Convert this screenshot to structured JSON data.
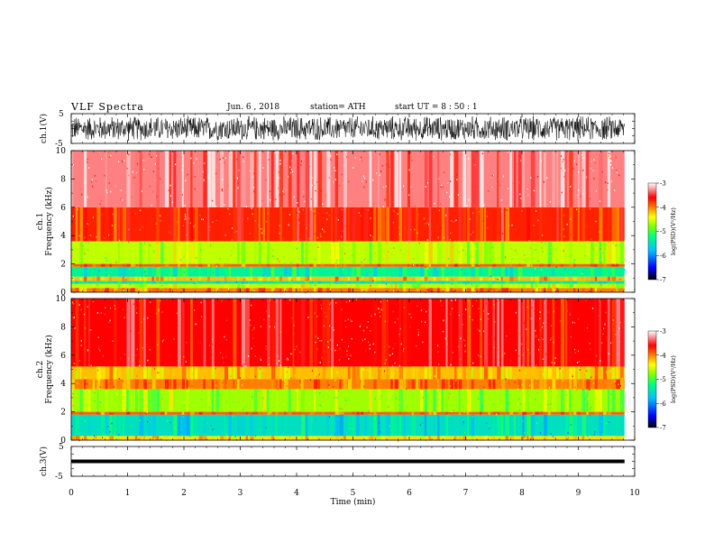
{
  "header": {
    "title": "VLF  Spectra",
    "date": "Jun. 6  , 2018",
    "station": "station= ATH",
    "start": "start  UT  =   8  : 50 : 1"
  },
  "colors": {
    "colormap": [
      "#000000",
      "#0000ff",
      "#00bfff",
      "#00ff7f",
      "#7fff00",
      "#ffff00",
      "#ff7f00",
      "#ff0000",
      "#ffffff"
    ],
    "waveform": "#000000",
    "axes": "#000000"
  },
  "chart_data": [
    {
      "type": "line",
      "name": "ch1-waveform",
      "ylabel": "ch.1(V)",
      "ylim": [
        -5,
        5
      ],
      "yticks": [
        "5",
        "-5"
      ],
      "xlim": [
        0,
        10
      ],
      "data_extent": [
        0,
        9.82
      ],
      "description_values": {
        "approx_amplitude": 4.5
      }
    },
    {
      "type": "heatmap",
      "name": "ch1-spectrogram",
      "ylabel": "ch.1\nFrequency (kHz)",
      "ylabel_line1": "ch.1",
      "ylabel_line2": "Frequency  (kHz)",
      "ylim": [
        0,
        10
      ],
      "yticks": [
        "0",
        "2",
        "4",
        "6",
        "8",
        "10"
      ],
      "xlim": [
        0,
        10
      ],
      "data_extent": [
        0,
        9.82
      ],
      "bands_khz": [
        {
          "from": 0.0,
          "to": 0.3,
          "log_psd": -4.0
        },
        {
          "from": 0.3,
          "to": 0.6,
          "log_psd": -4.6
        },
        {
          "from": 0.6,
          "to": 0.8,
          "log_psd": -5.4
        },
        {
          "from": 0.8,
          "to": 1.1,
          "log_psd": -4.2
        },
        {
          "from": 1.1,
          "to": 1.8,
          "log_psd": -5.3
        },
        {
          "from": 1.8,
          "to": 2.0,
          "log_psd": -3.9
        },
        {
          "from": 2.0,
          "to": 3.6,
          "log_psd": -4.6
        },
        {
          "from": 3.6,
          "to": 6.0,
          "log_psd": -3.7
        },
        {
          "from": 6.0,
          "to": 10.0,
          "log_psd": -3.3
        }
      ],
      "colorbar": {
        "label": "log(PSD)(V²/Hz)",
        "range": [
          -7,
          -3
        ],
        "ticks": [
          "-3",
          "-4",
          "-5",
          "-6",
          "-7"
        ]
      }
    },
    {
      "type": "heatmap",
      "name": "ch2-spectrogram",
      "ylabel_line1": "ch.2",
      "ylabel_line2": "Frequency  (kHz)",
      "ylim": [
        0,
        10
      ],
      "yticks": [
        "0",
        "2",
        "4",
        "6",
        "8",
        "10"
      ],
      "xlim": [
        0,
        10
      ],
      "data_extent": [
        0,
        9.82
      ],
      "bands_khz": [
        {
          "from": 0.0,
          "to": 0.3,
          "log_psd": -4.3
        },
        {
          "from": 0.3,
          "to": 1.8,
          "log_psd": -5.5
        },
        {
          "from": 1.8,
          "to": 2.0,
          "log_psd": -3.9
        },
        {
          "from": 2.0,
          "to": 3.6,
          "log_psd": -4.7
        },
        {
          "from": 3.6,
          "to": 4.3,
          "log_psd": -4.0
        },
        {
          "from": 4.3,
          "to": 5.2,
          "log_psd": -4.2
        },
        {
          "from": 5.2,
          "to": 10.0,
          "log_psd": -3.6
        }
      ],
      "colorbar": {
        "label": "log(PSD)(V²/Hz)",
        "range": [
          -7,
          -3
        ],
        "ticks": [
          "-3",
          "-4",
          "-5",
          "-6",
          "-7"
        ]
      }
    },
    {
      "type": "line",
      "name": "ch3-waveform",
      "ylabel": "ch.3(V)",
      "ylim": [
        -5,
        5
      ],
      "yticks": [
        "5",
        "-5"
      ],
      "xlim": [
        0,
        10
      ],
      "data_extent": [
        0,
        9.82
      ],
      "description_values": {
        "approx_level": 0
      }
    }
  ],
  "xaxis": {
    "label": "Time  (min)",
    "ticks": [
      "0",
      "1",
      "2",
      "3",
      "4",
      "5",
      "6",
      "7",
      "8",
      "9",
      "10"
    ]
  },
  "colorbar_label": "log(PSD)(V²/Hz)"
}
